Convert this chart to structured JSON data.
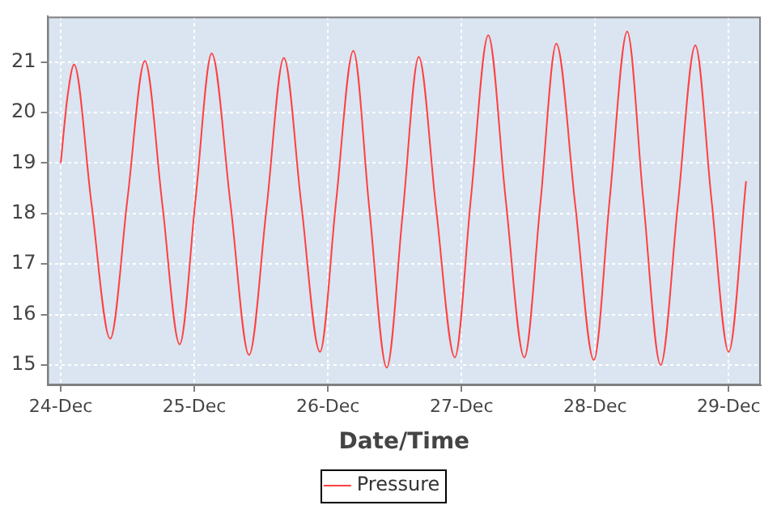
{
  "chart_data": {
    "type": "line",
    "xlabel": "Date/Time",
    "x": [
      "--12-24T00:00",
      "--12-24T01:12",
      "--12-24T02:24",
      "--12-24T05:31",
      "--12-24T08:53",
      "--12-24T12:00",
      "--12-24T15:07",
      "--12-24T18:14",
      "--12-24T21:22",
      "--12-25T00:14",
      "--12-25T03:07",
      "--12-25T06:29",
      "--12-25T09:50",
      "--12-25T12:58",
      "--12-25T16:05",
      "--12-25T19:12",
      "--12-25T22:34",
      "--12-26T01:26",
      "--12-26T04:34",
      "--12-26T07:26",
      "--12-26T10:34",
      "--12-26T13:26",
      "--12-26T16:19",
      "--12-26T19:26",
      "--12-26T22:48",
      "--12-27T01:41",
      "--12-27T04:48",
      "--12-27T07:55",
      "--12-27T11:17",
      "--12-27T14:10",
      "--12-27T17:02",
      "--12-27T20:24",
      "--12-27T23:46",
      "--12-28T02:38",
      "--12-28T05:46",
      "--12-28T08:38",
      "--12-28T11:46",
      "--12-28T14:53",
      "--12-28T18:00",
      "--12-28T20:53",
      "--12-29T00:00",
      "--12-29T03:07"
    ],
    "series": [
      {
        "name": "Pressure",
        "color": "#ff4040",
        "values": [
          19.0,
          20.3,
          20.95,
          18.2,
          15.52,
          18.3,
          21.02,
          18.2,
          15.41,
          18.3,
          21.17,
          18.2,
          15.2,
          18.1,
          21.08,
          18.2,
          15.26,
          18.2,
          21.22,
          18.1,
          14.95,
          18.0,
          21.1,
          18.1,
          15.15,
          18.3,
          21.53,
          18.3,
          15.15,
          18.2,
          21.36,
          18.2,
          15.1,
          18.3,
          21.6,
          18.3,
          15.0,
          18.2,
          21.33,
          18.3,
          15.26,
          18.64
        ]
      }
    ],
    "xlim": [
      "--12-23T21:36",
      "--12-29T05:46"
    ],
    "xticks": [
      {
        "value": "--12-24",
        "label": "24-Dec"
      },
      {
        "value": "--12-25",
        "label": "25-Dec"
      },
      {
        "value": "--12-26",
        "label": "26-Dec"
      },
      {
        "value": "--12-27",
        "label": "27-Dec"
      },
      {
        "value": "--12-28",
        "label": "28-Dec"
      },
      {
        "value": "--12-29",
        "label": "29-Dec"
      }
    ],
    "ylim": [
      14.6,
      21.9
    ],
    "yticks": [
      15,
      16,
      17,
      18,
      19,
      20,
      21
    ],
    "grid": true,
    "legend": "bottom",
    "marker": "none",
    "line_style": "solid"
  }
}
